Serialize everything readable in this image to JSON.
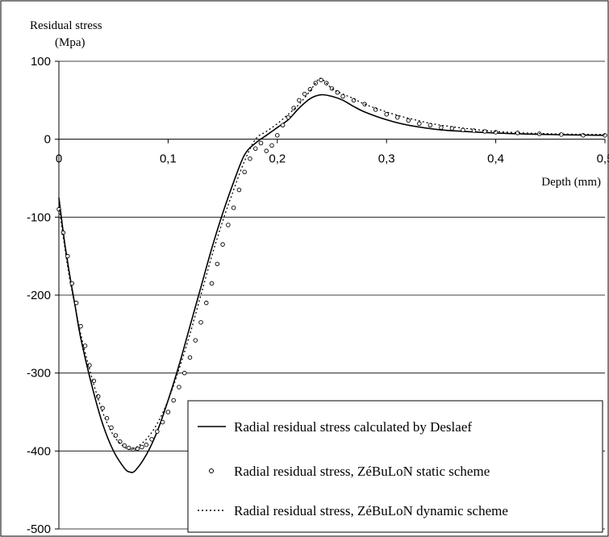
{
  "chart_data": {
    "type": "line",
    "ylabel_line1": "Residual stress",
    "ylabel_line2": "(Mpa)",
    "xlabel": "Depth (mm)",
    "xlim": [
      0,
      0.5
    ],
    "ylim": [
      -500,
      100
    ],
    "x_ticks": [
      "0",
      "0,1",
      "0,2",
      "0,3",
      "0,4",
      "0,5"
    ],
    "x_tick_values": [
      0,
      0.1,
      0.2,
      0.3,
      0.4,
      0.5
    ],
    "y_ticks": [
      "100",
      "0",
      "-100",
      "-200",
      "-300",
      "-400",
      "-500"
    ],
    "y_tick_values": [
      100,
      0,
      -100,
      -200,
      -300,
      -400,
      -500
    ],
    "grid": "horizontal",
    "legend_position": "bottom-right",
    "series": [
      {
        "name": "Radial residual stress calculated by Deslaef",
        "style": "solid",
        "x": [
          0,
          0.005,
          0.01,
          0.015,
          0.02,
          0.03,
          0.04,
          0.05,
          0.06,
          0.065,
          0.07,
          0.08,
          0.09,
          0.1,
          0.11,
          0.12,
          0.13,
          0.14,
          0.15,
          0.16,
          0.17,
          0.18,
          0.19,
          0.2,
          0.21,
          0.22,
          0.23,
          0.24,
          0.25,
          0.26,
          0.27,
          0.28,
          0.3,
          0.32,
          0.35,
          0.4,
          0.45,
          0.5
        ],
        "y": [
          -75,
          -130,
          -175,
          -215,
          -255,
          -315,
          -365,
          -400,
          -422,
          -427,
          -425,
          -405,
          -375,
          -335,
          -290,
          -240,
          -190,
          -140,
          -95,
          -55,
          -20,
          -5,
          5,
          15,
          25,
          40,
          52,
          57,
          55,
          50,
          42,
          35,
          25,
          18,
          12,
          8,
          6,
          5
        ]
      },
      {
        "name": "Radial residual stress, ZéBuLoN static scheme",
        "style": "circles",
        "x": [
          0,
          0.004,
          0.008,
          0.012,
          0.016,
          0.02,
          0.024,
          0.028,
          0.032,
          0.036,
          0.04,
          0.044,
          0.048,
          0.052,
          0.056,
          0.06,
          0.064,
          0.068,
          0.072,
          0.076,
          0.08,
          0.085,
          0.09,
          0.095,
          0.1,
          0.105,
          0.11,
          0.115,
          0.12,
          0.125,
          0.13,
          0.135,
          0.14,
          0.145,
          0.15,
          0.155,
          0.16,
          0.165,
          0.17,
          0.175,
          0.18,
          0.185,
          0.19,
          0.195,
          0.2,
          0.205,
          0.21,
          0.215,
          0.22,
          0.225,
          0.23,
          0.235,
          0.24,
          0.245,
          0.25,
          0.255,
          0.26,
          0.27,
          0.28,
          0.29,
          0.3,
          0.31,
          0.32,
          0.33,
          0.34,
          0.35,
          0.36,
          0.37,
          0.38,
          0.39,
          0.4,
          0.42,
          0.44,
          0.46,
          0.48,
          0.5
        ],
        "y": [
          -90,
          -120,
          -150,
          -185,
          -210,
          -240,
          -265,
          -290,
          -310,
          -330,
          -345,
          -358,
          -370,
          -380,
          -388,
          -393,
          -396,
          -398,
          -397,
          -395,
          -392,
          -385,
          -375,
          -363,
          -350,
          -335,
          -318,
          -300,
          -280,
          -258,
          -235,
          -210,
          -185,
          -160,
          -135,
          -110,
          -88,
          -65,
          -42,
          -25,
          -12,
          -5,
          -15,
          -8,
          5,
          18,
          28,
          40,
          50,
          58,
          64,
          72,
          76,
          72,
          65,
          60,
          55,
          50,
          45,
          38,
          32,
          28,
          24,
          20,
          18,
          15,
          14,
          12,
          11,
          10,
          9,
          8,
          7,
          6,
          5,
          5
        ]
      },
      {
        "name": "Radial residual stress, ZéBuLoN dynamic scheme",
        "style": "dotted",
        "x": [
          0,
          0.005,
          0.01,
          0.015,
          0.02,
          0.03,
          0.04,
          0.05,
          0.06,
          0.065,
          0.07,
          0.08,
          0.09,
          0.1,
          0.11,
          0.12,
          0.13,
          0.14,
          0.15,
          0.16,
          0.17,
          0.18,
          0.19,
          0.2,
          0.21,
          0.22,
          0.23,
          0.235,
          0.24,
          0.25,
          0.26,
          0.27,
          0.28,
          0.3,
          0.32,
          0.35,
          0.4,
          0.45,
          0.5
        ],
        "y": [
          -85,
          -135,
          -180,
          -215,
          -250,
          -305,
          -350,
          -380,
          -395,
          -398,
          -396,
          -385,
          -365,
          -335,
          -295,
          -250,
          -200,
          -150,
          -105,
          -65,
          -28,
          0,
          10,
          20,
          32,
          45,
          62,
          72,
          78,
          65,
          58,
          52,
          45,
          35,
          27,
          18,
          10,
          7,
          6
        ]
      }
    ]
  }
}
